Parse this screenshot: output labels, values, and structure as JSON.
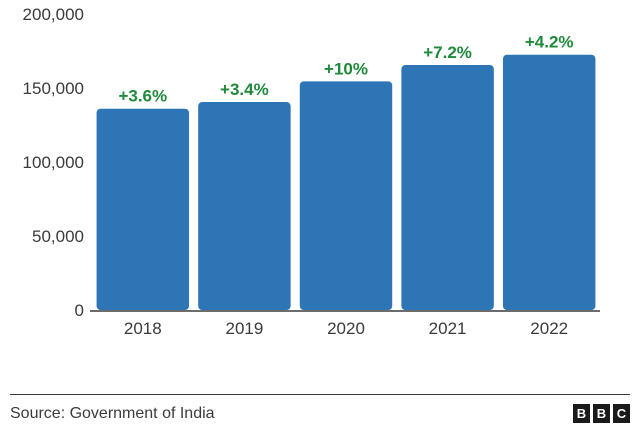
{
  "chart_data": {
    "type": "bar",
    "categories": [
      "2018",
      "2019",
      "2020",
      "2021",
      "2022"
    ],
    "values": [
      136000,
      140500,
      154500,
      165500,
      172500
    ],
    "data_labels": [
      "+3.6%",
      "+3.4%",
      "+10%",
      "+7.2%",
      "+4.2%"
    ],
    "ylim": [
      0,
      200000
    ],
    "yticks": [
      0,
      50000,
      100000,
      150000,
      200000
    ],
    "ytick_labels": [
      "0",
      "50,000",
      "100,000",
      "150,000",
      "200,000"
    ],
    "title": "",
    "xlabel": "",
    "ylabel": "",
    "grid": false
  },
  "colors": {
    "bar": "#2e75b6",
    "label": "#1f8a3b",
    "text": "#3b3b3b",
    "axis": "#3b3b3b"
  },
  "footer": {
    "source": "Source: Government of India",
    "logo_letters": [
      "B",
      "B",
      "C"
    ]
  }
}
